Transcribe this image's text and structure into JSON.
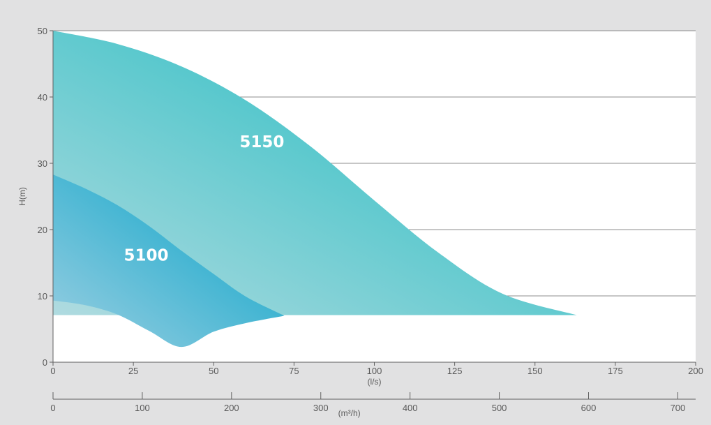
{
  "chart_data": {
    "type": "area",
    "ylabel": "H(m)",
    "xlabel": "(l/s)",
    "x2label": "(m³/h)",
    "xlim": [
      0,
      200
    ],
    "ylim": [
      0,
      50
    ],
    "x_ticks": [
      0,
      25,
      50,
      75,
      100,
      125,
      150,
      175,
      200
    ],
    "y_ticks": [
      0,
      10,
      20,
      30,
      40,
      50
    ],
    "x2_ticks": [
      0,
      100,
      200,
      300,
      400,
      500,
      600,
      700
    ],
    "x2_scale_per_x": 3.6,
    "grid": true,
    "colors": {
      "background": "#e1e1e2",
      "plot_bg": "#ffffff",
      "grid": "#8c8c8c",
      "axis": "#606060",
      "text": "#595959",
      "region_5150_dark": "#4fc6cb",
      "region_5150_light": "#b0dbe0",
      "region_5100_dark": "#3bb3d1",
      "region_5100_light": "#9ccfe2"
    },
    "series": [
      {
        "name": "5150",
        "label": "5150",
        "label_at": [
          65,
          32.4
        ],
        "upper": [
          [
            0,
            50
          ],
          [
            20,
            48
          ],
          [
            40,
            44.6
          ],
          [
            60,
            39.5
          ],
          [
            80,
            32.6
          ],
          [
            100,
            24.4
          ],
          [
            120,
            16.5
          ],
          [
            140,
            10.3
          ],
          [
            163,
            7.1
          ]
        ],
        "lower": [
          [
            163,
            7.1
          ],
          [
            72,
            7.1
          ],
          [
            0,
            7.1
          ]
        ]
      },
      {
        "name": "5100",
        "label": "5100",
        "label_at": [
          29,
          15.3
        ],
        "upper": [
          [
            0,
            28.3
          ],
          [
            10,
            26.2
          ],
          [
            20,
            23.7
          ],
          [
            30,
            20.5
          ],
          [
            40,
            16.8
          ],
          [
            50,
            13.3
          ],
          [
            60,
            9.9
          ],
          [
            72,
            7.0
          ]
        ],
        "lower": [
          [
            72,
            7.0
          ],
          [
            60,
            5.9
          ],
          [
            50,
            4.6
          ],
          [
            40,
            2.3
          ],
          [
            30,
            4.7
          ],
          [
            20,
            7.2
          ],
          [
            10,
            8.6
          ],
          [
            0,
            9.3
          ]
        ]
      }
    ]
  }
}
